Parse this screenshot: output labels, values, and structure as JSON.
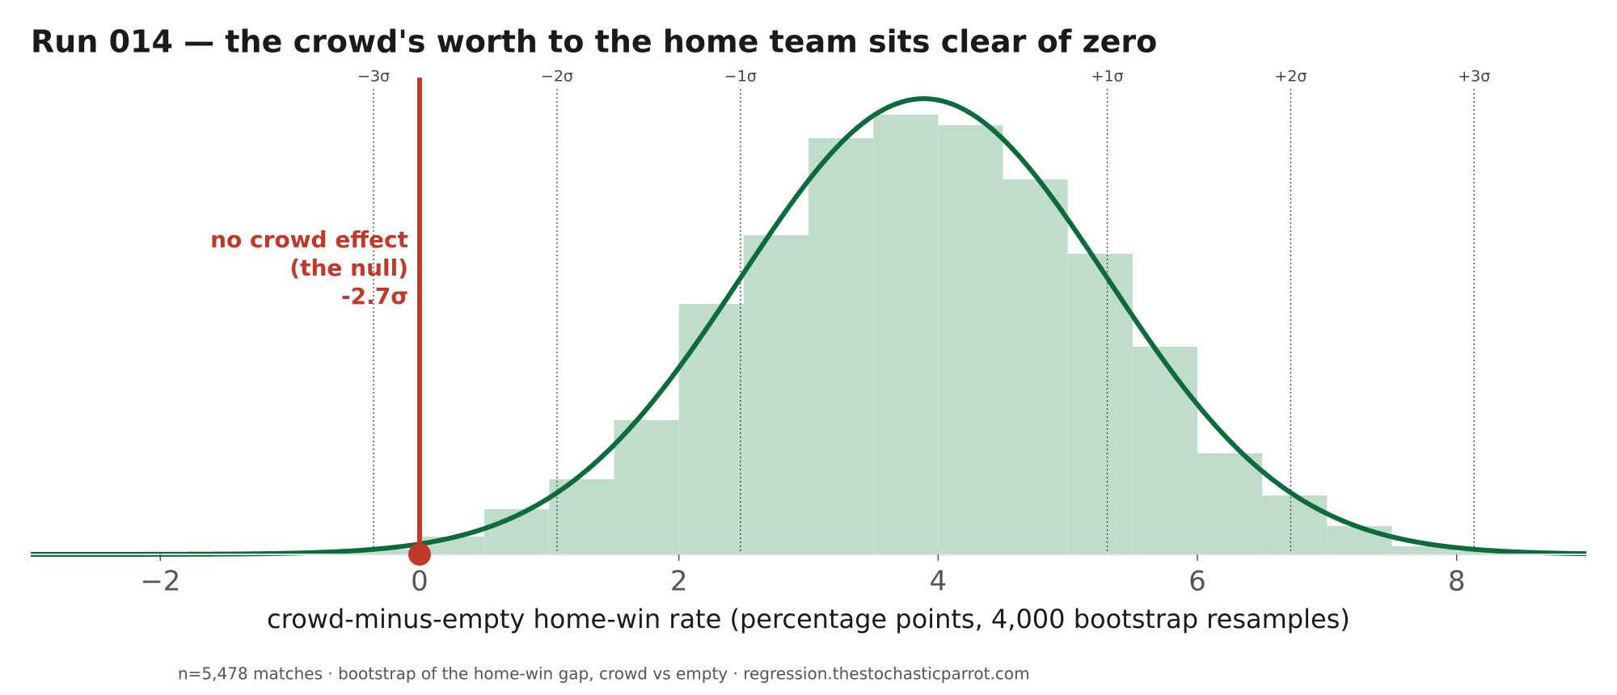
{
  "chart_data": {
    "type": "histogram",
    "title": "Run 014 — the crowd's worth to the home team sits clear of zero",
    "x_label": "crowd-minus-empty home-win rate  (percentage points, 4,000 bootstrap resamples)",
    "footnote": "n=5,478 matches · bootstrap of the home-win gap, crowd vs empty · regression.thestochasticparrot.com",
    "bins": [
      -0.5,
      0,
      0.5,
      1,
      1.5,
      2,
      2.5,
      3,
      3.5,
      4,
      4.5,
      5,
      5.5,
      6,
      6.5,
      7,
      7.5,
      8,
      8.5
    ],
    "values": [
      6,
      22,
      56,
      93,
      166,
      310,
      395,
      515,
      544,
      531,
      464,
      372,
      257,
      125,
      73,
      35,
      10,
      4
    ],
    "color": "#c0dccb",
    "fit": {
      "mean": 3.89,
      "sd": 1.415,
      "scale": 2000,
      "color": "#0b6b3a"
    },
    "sigma_lines": [
      {
        "value": -0.355,
        "label": "−3σ"
      },
      {
        "value": 1.06,
        "label": "−2σ"
      },
      {
        "value": 2.475,
        "label": "−1σ"
      },
      {
        "value": 5.305,
        "label": "+1σ"
      },
      {
        "value": 6.72,
        "label": "+2σ"
      },
      {
        "value": 8.135,
        "label": "+3σ"
      }
    ],
    "null": {
      "value": 0,
      "color": "#c0392b",
      "label_lines": [
        "no crowd effect",
        "(the null)",
        "-2.7σ"
      ]
    },
    "xlim": [
      -3,
      9
    ],
    "ylim": [
      0,
      590
    ],
    "xticks": [
      {
        "value": -2,
        "label": "−2"
      },
      0,
      2,
      4,
      6,
      8
    ]
  }
}
